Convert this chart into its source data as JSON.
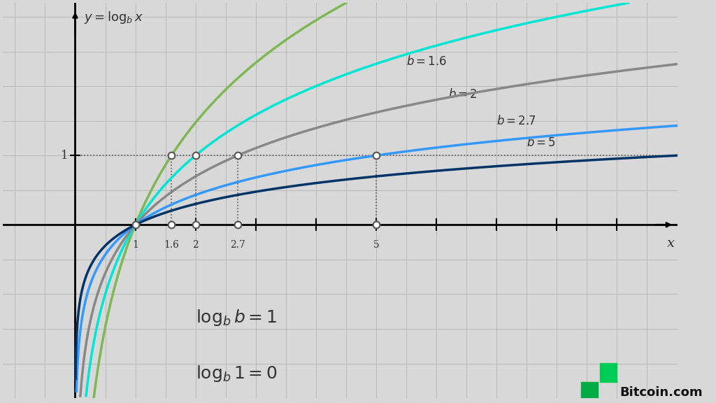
{
  "background_color": "#d8d8d8",
  "grid_color": "#b8b8b8",
  "curves": [
    {
      "b": 1.6,
      "color": "#7db855",
      "label": "b = 1.6",
      "lw": 2.5
    },
    {
      "b": 2.0,
      "color": "#00e5d4",
      "label": "b = 2",
      "lw": 2.5
    },
    {
      "b": 2.7,
      "color": "#888888",
      "label": "b = 2.7",
      "lw": 2.5
    },
    {
      "b": 5.0,
      "color": "#3399ff",
      "label": "b = 5",
      "lw": 2.5
    },
    {
      "b": 10.0,
      "color": "#003366",
      "label": "",
      "lw": 2.5
    }
  ],
  "base_values": [
    1.6,
    2.0,
    2.7,
    5.0
  ],
  "xmin": 0.05,
  "xmax": 10.0,
  "ymin": -2.5,
  "ymax": 3.2,
  "axis_origin_x": 0.0,
  "axis_origin_y": 0.0,
  "xlabel": "x",
  "ylabel": "y = \\log_b x",
  "annotation1": "\\log_b b = 1",
  "annotation2": "\\log_b 1 = 0",
  "dotted_y": 1.0,
  "dotted_color": "#555555",
  "circle_color": "white",
  "circle_edge": "#555555",
  "bitcoin_text": "Bitcoin.com",
  "bitcoin_color_b": "#00b300",
  "bitcoin_color_rest": "#222222"
}
